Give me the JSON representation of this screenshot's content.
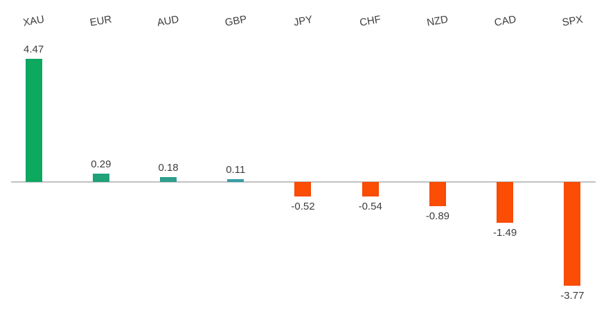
{
  "chart_data": {
    "type": "bar",
    "categories": [
      "XAU",
      "EUR",
      "AUD",
      "GBP",
      "JPY",
      "CHF",
      "NZD",
      "CAD",
      "SPX"
    ],
    "values": [
      4.47,
      0.29,
      0.18,
      0.11,
      -0.52,
      -0.54,
      -0.89,
      -1.49,
      -3.77
    ],
    "value_labels": [
      "4.47",
      "0.29",
      "0.18",
      "0.11",
      "-0.52",
      "-0.54",
      "-0.89",
      "-1.49",
      "-3.77"
    ],
    "bar_colors": [
      "#0ca95e",
      "#1fa377",
      "#2f9f8d",
      "#3a9fab",
      "#fb4e04",
      "#fb4e04",
      "#fb4e04",
      "#fb4e04",
      "#fb4e04"
    ],
    "positive_color": "#0ca95e",
    "negative_color": "#fb4e04",
    "axis_color": "#c1c1c1",
    "text_color": "#3d3d3d",
    "background_color": "#ffffff",
    "ylim": [
      -3.77,
      4.47
    ],
    "grid": false,
    "legend": false,
    "category_label_position": "top",
    "category_label_rotation_deg": -10,
    "value_label_position": "outside-end"
  }
}
